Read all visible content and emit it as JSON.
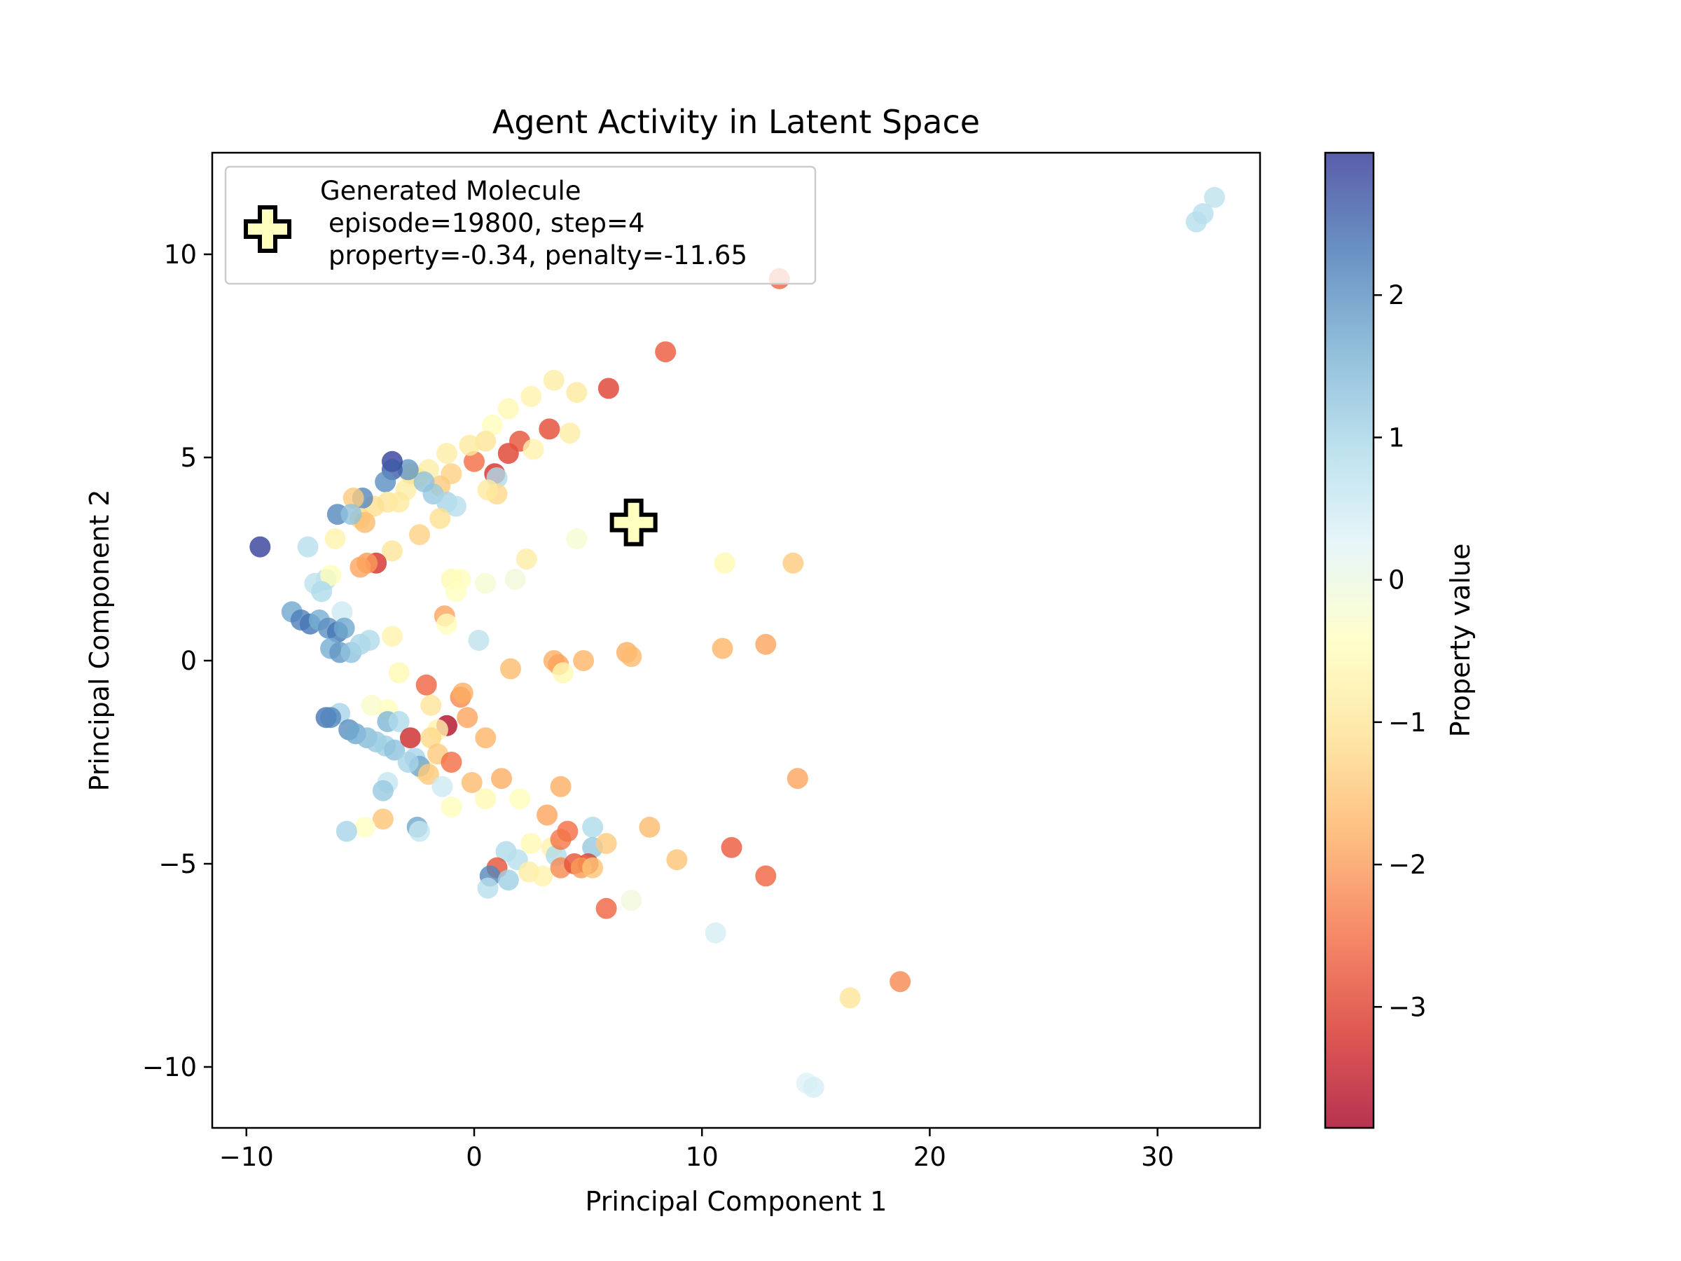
{
  "chart_data": {
    "type": "scatter",
    "title": "Agent Activity in Latent Space",
    "xlabel": "Principal Component 1",
    "ylabel": "Principal Component 2",
    "xlim": [
      -11.5,
      34.5
    ],
    "ylim": [
      -11.5,
      12.5
    ],
    "xticks": [
      -10,
      0,
      10,
      20,
      30
    ],
    "yticks": [
      -10,
      -5,
      0,
      5,
      10
    ],
    "grid": false,
    "colormap": "RdYlBu",
    "colorbar": {
      "label": "Property value",
      "range": [
        -3.85,
        3.0
      ],
      "ticks": [
        -3,
        -2,
        -1,
        0,
        1,
        2
      ],
      "stops": [
        "#a50026",
        "#d73027",
        "#f46d43",
        "#fdae61",
        "#fee090",
        "#ffffbf",
        "#e0f3f8",
        "#abd9e9",
        "#74add1",
        "#4575b4",
        "#313695"
      ]
    },
    "highlight": {
      "name": "Generated Molecule",
      "x": 7.0,
      "y": 3.4,
      "marker": "plus",
      "color": "#ffffbf",
      "episode": 19800,
      "step": 4,
      "property": -0.34,
      "penalty": -11.65
    },
    "legend": {
      "position": "upper-left",
      "line1": "Generated Molecule",
      "line2": "episode=19800, step=4",
      "line3": "property=-0.34, penalty=-11.65"
    },
    "points": [
      {
        "x": 32.5,
        "y": 11.4,
        "v": 0.7
      },
      {
        "x": 32.0,
        "y": 11.0,
        "v": 0.8
      },
      {
        "x": 31.7,
        "y": 10.8,
        "v": 0.8
      },
      {
        "x": 13.4,
        "y": 9.4,
        "v": -2.6
      },
      {
        "x": 8.4,
        "y": 7.6,
        "v": -2.7
      },
      {
        "x": 5.9,
        "y": 6.7,
        "v": -3.0
      },
      {
        "x": 3.5,
        "y": 6.9,
        "v": -0.8
      },
      {
        "x": 2.5,
        "y": 6.5,
        "v": -0.7
      },
      {
        "x": 4.5,
        "y": 6.6,
        "v": -0.9
      },
      {
        "x": 3.3,
        "y": 5.7,
        "v": -2.9
      },
      {
        "x": 4.2,
        "y": 5.6,
        "v": -0.8
      },
      {
        "x": 1.5,
        "y": 6.2,
        "v": -0.6
      },
      {
        "x": 0.8,
        "y": 5.8,
        "v": -0.5
      },
      {
        "x": 1.5,
        "y": 5.1,
        "v": -3.0
      },
      {
        "x": 2.0,
        "y": 5.4,
        "v": -2.8
      },
      {
        "x": 0.9,
        "y": 4.6,
        "v": -3.2
      },
      {
        "x": 0.0,
        "y": 4.9,
        "v": -2.5
      },
      {
        "x": 0.5,
        "y": 5.4,
        "v": -1.0
      },
      {
        "x": -0.2,
        "y": 5.3,
        "v": -0.9
      },
      {
        "x": -1.2,
        "y": 5.1,
        "v": -0.8
      },
      {
        "x": -1.0,
        "y": 4.6,
        "v": -1.3
      },
      {
        "x": 1.0,
        "y": 4.5,
        "v": 0.9
      },
      {
        "x": 2.6,
        "y": 5.2,
        "v": -0.7
      },
      {
        "x": 1.0,
        "y": 4.1,
        "v": -1.2
      },
      {
        "x": 0.6,
        "y": 4.2,
        "v": -0.9
      },
      {
        "x": -1.5,
        "y": 4.3,
        "v": -1.4
      },
      {
        "x": -2.0,
        "y": 4.7,
        "v": -0.8
      },
      {
        "x": -2.5,
        "y": 4.5,
        "v": -0.9
      },
      {
        "x": -3.0,
        "y": 4.2,
        "v": -0.8
      },
      {
        "x": -2.8,
        "y": 4.6,
        "v": -1.0
      },
      {
        "x": -1.8,
        "y": 4.1,
        "v": 1.2
      },
      {
        "x": -2.2,
        "y": 4.4,
        "v": 1.3
      },
      {
        "x": -1.2,
        "y": 3.9,
        "v": 1.0
      },
      {
        "x": -0.8,
        "y": 3.8,
        "v": 0.8
      },
      {
        "x": -2.9,
        "y": 4.7,
        "v": 1.9
      },
      {
        "x": -3.6,
        "y": 4.9,
        "v": 2.9
      },
      {
        "x": -3.6,
        "y": 4.7,
        "v": 2.6
      },
      {
        "x": -3.9,
        "y": 4.4,
        "v": 2.0
      },
      {
        "x": -3.8,
        "y": 3.9,
        "v": -1.0
      },
      {
        "x": -4.4,
        "y": 3.8,
        "v": -1.1
      },
      {
        "x": -4.9,
        "y": 4.0,
        "v": 2.1
      },
      {
        "x": -5.3,
        "y": 4.0,
        "v": -1.4
      },
      {
        "x": -5.0,
        "y": 3.5,
        "v": -1.2
      },
      {
        "x": -4.8,
        "y": 3.4,
        "v": -1.6
      },
      {
        "x": -3.3,
        "y": 3.9,
        "v": -0.9
      },
      {
        "x": -2.4,
        "y": 3.1,
        "v": -1.3
      },
      {
        "x": -1.5,
        "y": 3.5,
        "v": -1.1
      },
      {
        "x": -6.0,
        "y": 3.6,
        "v": 2.1
      },
      {
        "x": -5.4,
        "y": 3.6,
        "v": 1.3
      },
      {
        "x": -9.4,
        "y": 2.8,
        "v": 2.9
      },
      {
        "x": -7.3,
        "y": 2.8,
        "v": 0.8
      },
      {
        "x": -6.1,
        "y": 3.0,
        "v": -0.7
      },
      {
        "x": -3.6,
        "y": 2.7,
        "v": -1.0
      },
      {
        "x": -4.3,
        "y": 2.4,
        "v": -3.2
      },
      {
        "x": -4.7,
        "y": 2.4,
        "v": -2.0
      },
      {
        "x": -5.0,
        "y": 2.3,
        "v": -1.9
      },
      {
        "x": -6.5,
        "y": 2.0,
        "v": 0.8
      },
      {
        "x": -7.0,
        "y": 1.9,
        "v": 0.7
      },
      {
        "x": -6.3,
        "y": 2.1,
        "v": -0.5
      },
      {
        "x": -6.7,
        "y": 1.7,
        "v": 0.9
      },
      {
        "x": -1.0,
        "y": 2.0,
        "v": -0.6
      },
      {
        "x": -0.6,
        "y": 2.0,
        "v": -0.5
      },
      {
        "x": -0.8,
        "y": 1.7,
        "v": -0.4
      },
      {
        "x": 0.5,
        "y": 1.9,
        "v": -0.2
      },
      {
        "x": 1.8,
        "y": 2.0,
        "v": -0.1
      },
      {
        "x": 2.3,
        "y": 2.5,
        "v": -0.8
      },
      {
        "x": 4.5,
        "y": 3.0,
        "v": -0.2
      },
      {
        "x": 11.0,
        "y": 2.4,
        "v": -0.6
      },
      {
        "x": 14.0,
        "y": 2.4,
        "v": -1.4
      },
      {
        "x": -1.3,
        "y": 1.1,
        "v": -1.9
      },
      {
        "x": -1.2,
        "y": 0.9,
        "v": -0.5
      },
      {
        "x": -5.8,
        "y": 1.2,
        "v": 0.5
      },
      {
        "x": -8.0,
        "y": 1.2,
        "v": 1.7
      },
      {
        "x": -7.6,
        "y": 1.0,
        "v": 2.2
      },
      {
        "x": -7.2,
        "y": 0.9,
        "v": 2.3
      },
      {
        "x": -6.8,
        "y": 1.0,
        "v": 1.6
      },
      {
        "x": -6.4,
        "y": 0.8,
        "v": 2.0
      },
      {
        "x": -6.0,
        "y": 0.7,
        "v": 2.3
      },
      {
        "x": -5.7,
        "y": 0.8,
        "v": 1.7
      },
      {
        "x": -6.3,
        "y": 0.3,
        "v": 1.6
      },
      {
        "x": -5.9,
        "y": 0.2,
        "v": 1.9
      },
      {
        "x": -5.4,
        "y": 0.2,
        "v": 1.3
      },
      {
        "x": -5.0,
        "y": 0.4,
        "v": 1.0
      },
      {
        "x": -4.6,
        "y": 0.5,
        "v": 0.9
      },
      {
        "x": -3.6,
        "y": 0.6,
        "v": -0.7
      },
      {
        "x": 0.2,
        "y": 0.5,
        "v": 0.7
      },
      {
        "x": 1.6,
        "y": -0.2,
        "v": -1.6
      },
      {
        "x": 3.5,
        "y": 0.0,
        "v": -1.8
      },
      {
        "x": 3.7,
        "y": -0.1,
        "v": -1.9
      },
      {
        "x": 3.9,
        "y": -0.3,
        "v": -0.6
      },
      {
        "x": 4.8,
        "y": 0.0,
        "v": -1.7
      },
      {
        "x": 6.7,
        "y": 0.2,
        "v": -1.8
      },
      {
        "x": 6.9,
        "y": 0.1,
        "v": -1.6
      },
      {
        "x": 10.9,
        "y": 0.3,
        "v": -1.7
      },
      {
        "x": 12.8,
        "y": 0.4,
        "v": -1.9
      },
      {
        "x": -3.3,
        "y": -0.3,
        "v": -0.6
      },
      {
        "x": -2.1,
        "y": -0.6,
        "v": -2.6
      },
      {
        "x": -0.6,
        "y": -0.9,
        "v": -2.2
      },
      {
        "x": -0.5,
        "y": -0.8,
        "v": -1.8
      },
      {
        "x": -1.9,
        "y": -1.1,
        "v": -1.0
      },
      {
        "x": -0.3,
        "y": -1.4,
        "v": -1.9
      },
      {
        "x": -3.8,
        "y": -1.2,
        "v": -0.5
      },
      {
        "x": -4.5,
        "y": -1.1,
        "v": -0.3
      },
      {
        "x": -5.9,
        "y": -1.3,
        "v": 1.0
      },
      {
        "x": -6.5,
        "y": -1.4,
        "v": 2.3
      },
      {
        "x": -6.3,
        "y": -1.4,
        "v": 2.1
      },
      {
        "x": -5.5,
        "y": -1.7,
        "v": 2.0
      },
      {
        "x": -5.2,
        "y": -1.8,
        "v": 1.7
      },
      {
        "x": -4.7,
        "y": -1.9,
        "v": 1.4
      },
      {
        "x": -4.3,
        "y": -2.0,
        "v": 1.2
      },
      {
        "x": -3.8,
        "y": -1.5,
        "v": 1.5
      },
      {
        "x": -3.3,
        "y": -1.5,
        "v": 0.9
      },
      {
        "x": -3.9,
        "y": -2.1,
        "v": 1.1
      },
      {
        "x": -3.5,
        "y": -2.2,
        "v": 1.3
      },
      {
        "x": -2.8,
        "y": -1.9,
        "v": -3.3
      },
      {
        "x": -1.2,
        "y": -1.6,
        "v": -3.7
      },
      {
        "x": -1.6,
        "y": -1.7,
        "v": -0.7
      },
      {
        "x": -1.9,
        "y": -1.9,
        "v": -1.2
      },
      {
        "x": -1.6,
        "y": -2.3,
        "v": -1.4
      },
      {
        "x": -1.0,
        "y": -2.5,
        "v": -2.5
      },
      {
        "x": 0.5,
        "y": -1.9,
        "v": -1.7
      },
      {
        "x": -2.6,
        "y": -2.4,
        "v": 1.0
      },
      {
        "x": -2.2,
        "y": -2.7,
        "v": -1.0
      },
      {
        "x": -2.4,
        "y": -2.6,
        "v": 1.7
      },
      {
        "x": -2.9,
        "y": -2.5,
        "v": 1.0
      },
      {
        "x": -2.0,
        "y": -2.8,
        "v": -1.4
      },
      {
        "x": -1.4,
        "y": -3.1,
        "v": 0.5
      },
      {
        "x": -0.1,
        "y": -3.0,
        "v": -1.6
      },
      {
        "x": 1.2,
        "y": -2.9,
        "v": -1.8
      },
      {
        "x": 0.5,
        "y": -3.4,
        "v": -0.6
      },
      {
        "x": 2.0,
        "y": -3.4,
        "v": -0.5
      },
      {
        "x": -3.8,
        "y": -3.0,
        "v": 0.6
      },
      {
        "x": -4.0,
        "y": -3.2,
        "v": 1.2
      },
      {
        "x": -1.0,
        "y": -3.6,
        "v": -0.5
      },
      {
        "x": 3.8,
        "y": -3.1,
        "v": -1.8
      },
      {
        "x": 14.2,
        "y": -2.9,
        "v": -1.9
      },
      {
        "x": 3.2,
        "y": -3.8,
        "v": -1.9
      },
      {
        "x": -4.0,
        "y": -3.9,
        "v": -1.5
      },
      {
        "x": -4.8,
        "y": -4.1,
        "v": -0.4
      },
      {
        "x": -5.6,
        "y": -4.2,
        "v": 1.0
      },
      {
        "x": -2.5,
        "y": -4.1,
        "v": 1.7
      },
      {
        "x": -2.4,
        "y": -4.2,
        "v": 0.6
      },
      {
        "x": 2.5,
        "y": -4.5,
        "v": -0.6
      },
      {
        "x": 3.4,
        "y": -4.6,
        "v": -0.7
      },
      {
        "x": 3.6,
        "y": -4.8,
        "v": 0.9
      },
      {
        "x": 4.1,
        "y": -4.2,
        "v": -2.5
      },
      {
        "x": 3.8,
        "y": -4.4,
        "v": -2.4
      },
      {
        "x": 5.2,
        "y": -4.1,
        "v": 0.9
      },
      {
        "x": 5.2,
        "y": -4.6,
        "v": 1.2
      },
      {
        "x": 5.8,
        "y": -4.5,
        "v": -1.4
      },
      {
        "x": 7.7,
        "y": -4.1,
        "v": -1.6
      },
      {
        "x": 8.9,
        "y": -4.9,
        "v": -1.5
      },
      {
        "x": 11.3,
        "y": -4.6,
        "v": -2.7
      },
      {
        "x": 1.4,
        "y": -4.7,
        "v": 0.9
      },
      {
        "x": 1.9,
        "y": -4.9,
        "v": 0.8
      },
      {
        "x": 2.4,
        "y": -5.2,
        "v": -0.8
      },
      {
        "x": 3.0,
        "y": -5.3,
        "v": -0.7
      },
      {
        "x": 3.8,
        "y": -5.1,
        "v": -2.2
      },
      {
        "x": 4.4,
        "y": -5.0,
        "v": -2.8
      },
      {
        "x": 5.0,
        "y": -5.0,
        "v": -3.0
      },
      {
        "x": 4.7,
        "y": -5.1,
        "v": -2.0
      },
      {
        "x": 5.2,
        "y": -5.1,
        "v": -1.5
      },
      {
        "x": 1.0,
        "y": -5.1,
        "v": -2.8
      },
      {
        "x": 0.7,
        "y": -5.3,
        "v": 2.1
      },
      {
        "x": 1.5,
        "y": -5.4,
        "v": 1.1
      },
      {
        "x": 0.6,
        "y": -5.6,
        "v": 0.8
      },
      {
        "x": 12.8,
        "y": -5.3,
        "v": -2.6
      },
      {
        "x": 5.8,
        "y": -6.1,
        "v": -2.6
      },
      {
        "x": 6.9,
        "y": -5.9,
        "v": -0.1
      },
      {
        "x": 10.6,
        "y": -6.7,
        "v": 0.4
      },
      {
        "x": 16.5,
        "y": -8.3,
        "v": -1.0
      },
      {
        "x": 18.7,
        "y": -7.9,
        "v": -2.2
      },
      {
        "x": 14.6,
        "y": -10.4,
        "v": 0.3
      },
      {
        "x": 14.9,
        "y": -10.5,
        "v": 0.4
      }
    ]
  }
}
